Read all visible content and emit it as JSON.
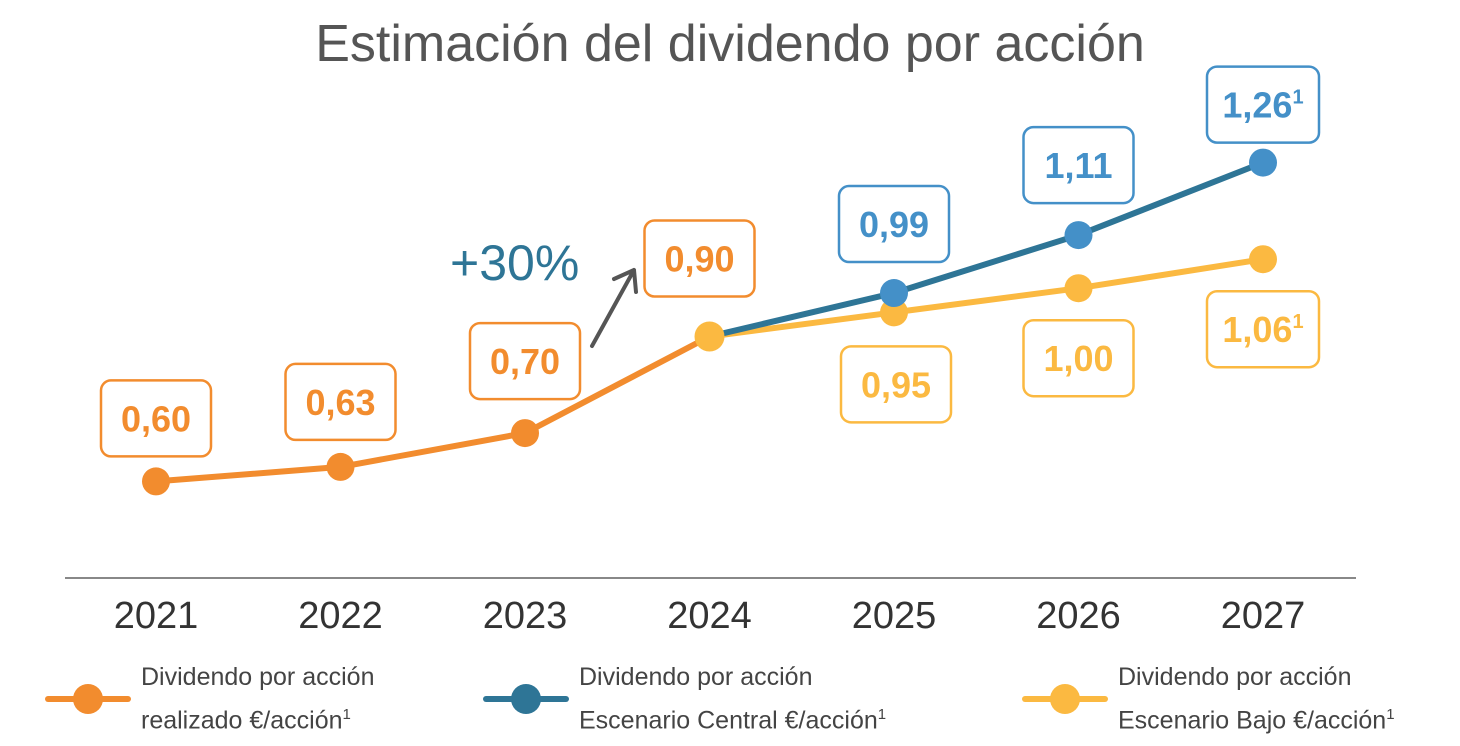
{
  "chart_data": {
    "type": "line",
    "title": "Estimación del dividendo por acción",
    "categories": [
      "2021",
      "2022",
      "2023",
      "2024",
      "2025",
      "2026",
      "2027"
    ],
    "ylim": [
      0.4,
      1.3
    ],
    "grid": false,
    "legend_position": "bottom",
    "series": [
      {
        "name_line1": "Dividendo por acción",
        "name_line2": "realizado €/acción",
        "footnote": "1",
        "color": "#f28c2e",
        "x": [
          "2021",
          "2022",
          "2023",
          "2024"
        ],
        "values": [
          0.6,
          0.63,
          0.7,
          0.9
        ],
        "labels": [
          "0,60",
          "0,63",
          "0,70",
          "0,90"
        ],
        "label_footnotes": [
          "",
          "",
          "",
          ""
        ]
      },
      {
        "name_line1": "Dividendo por acción",
        "name_line2": "Escenario Central €/acción",
        "footnote": "1",
        "color": "#2e7596",
        "marker_color": "#4490c8",
        "x": [
          "2024",
          "2025",
          "2026",
          "2027"
        ],
        "values": [
          0.9,
          0.99,
          1.11,
          1.26
        ],
        "labels": [
          "",
          "0,99",
          "1,11",
          "1,26"
        ],
        "label_footnotes": [
          "",
          "",
          "",
          "1"
        ]
      },
      {
        "name_line1": "Dividendo por acción",
        "name_line2": "Escenario Bajo €/acción",
        "footnote": "1",
        "color": "#fbb941",
        "x": [
          "2024",
          "2025",
          "2026",
          "2027"
        ],
        "values": [
          0.9,
          0.95,
          1.0,
          1.06
        ],
        "labels": [
          "",
          "0,95",
          "1,00",
          "1,06"
        ],
        "label_footnotes": [
          "",
          "",
          "",
          "1"
        ]
      }
    ],
    "annotation": {
      "text": "+30%",
      "color": "#2e7596"
    }
  }
}
